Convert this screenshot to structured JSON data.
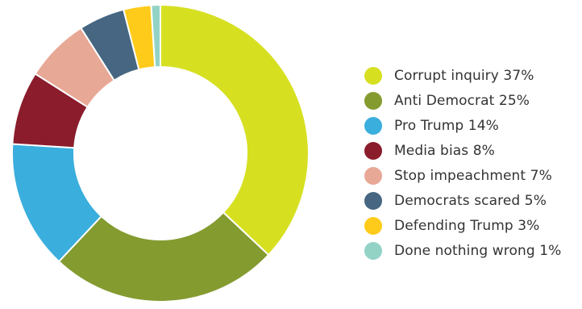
{
  "chart_data": {
    "type": "pie",
    "variant": "donut",
    "categories": [
      "Corrupt inquiry",
      "Anti Democrat",
      "Pro Trump",
      "Media bias",
      "Stop impeachment",
      "Democrats scared",
      "Defending Trump",
      "Done nothing wrong"
    ],
    "values": [
      37,
      25,
      14,
      8,
      7,
      5,
      3,
      1
    ],
    "unit": "%",
    "colors": [
      "#d6e021",
      "#849b30",
      "#3aaedd",
      "#8a1c2c",
      "#e8a896",
      "#466681",
      "#fecb1a",
      "#93d3c5"
    ],
    "legend": {
      "position": "right",
      "entries": [
        "Corrupt inquiry 37%",
        "Anti Democrat 25%",
        "Pro Trump 14%",
        "Media bias 8%",
        "Stop impeachment 7%",
        "Democrats scared 5%",
        "Defending Trump 3%",
        "Done nothing wrong 1%"
      ]
    }
  }
}
